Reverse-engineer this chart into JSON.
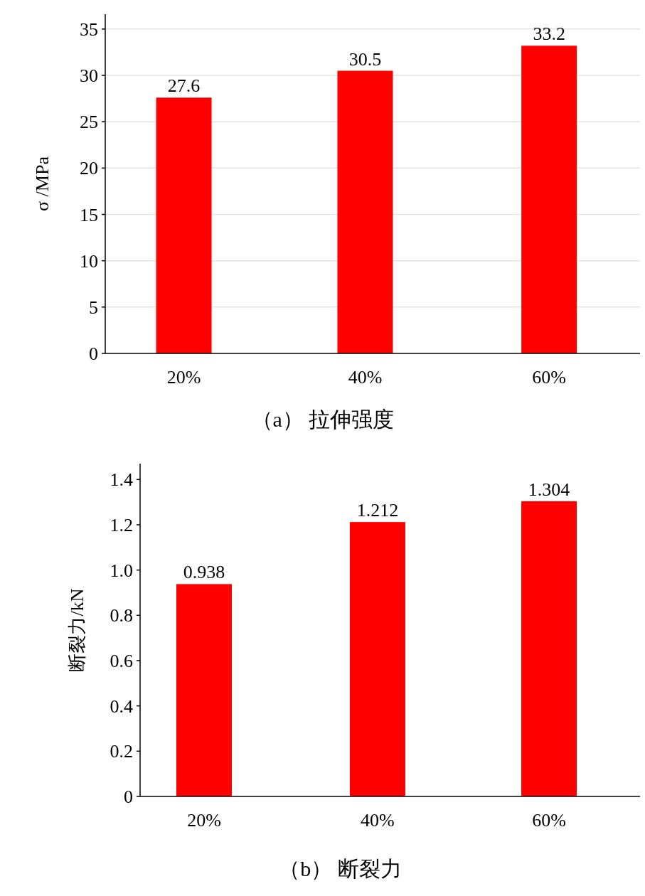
{
  "chart_data": [
    {
      "type": "bar",
      "title": "（a） 拉伸强度",
      "ylabel": "σ /MPa",
      "categories": [
        "20%",
        "40%",
        "60%"
      ],
      "values": [
        27.6,
        30.5,
        33.2
      ],
      "color": "#ff0000",
      "ylim": [
        0,
        36.6
      ],
      "yticks": [
        0,
        5,
        10,
        15,
        20,
        25,
        30,
        35
      ],
      "grid": "y",
      "data_labels": true
    },
    {
      "type": "bar",
      "title": "（b） 断裂力",
      "ylabel": "断裂力/kN",
      "categories": [
        "20%",
        "40%",
        "60%"
      ],
      "values": [
        0.938,
        1.212,
        1.304
      ],
      "color": "#ff0000",
      "ylim": [
        0,
        1.47
      ],
      "yticks": [
        0,
        0.2,
        0.4,
        0.6,
        0.8,
        {
          "value": 1.0,
          "label": "1.0"
        },
        1.2,
        1.4
      ],
      "data_labels": true
    }
  ]
}
